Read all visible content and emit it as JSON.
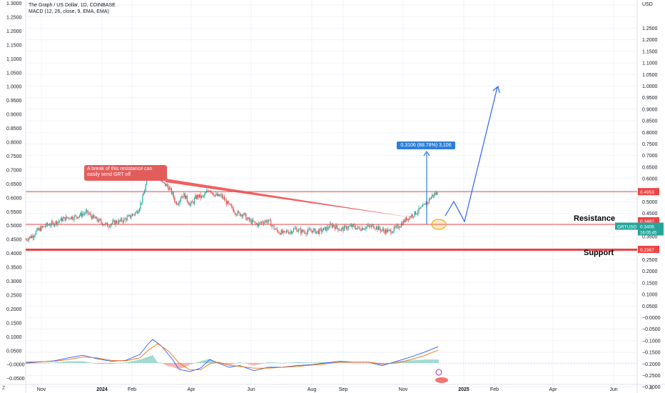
{
  "header": {
    "title": "The Graph / US Dollar, 1D, COINBASE",
    "indicator": "MACD (12, 26, close, 9, EMA, EMA)"
  },
  "colors": {
    "background": "#ffffff",
    "grid": "#f0f3fa",
    "up": "#26a69a",
    "down": "#ef5350",
    "resistance_line": "#ef4444",
    "support_line": "#ef4444",
    "measure": "#2d7fd8",
    "projection": "#2962ff",
    "macd_line": "#2962ff",
    "signal_line": "#ff6d00",
    "highlight_circle": "#f5a623",
    "tag_red": "#ef4444",
    "tag_teal": "#26a69a"
  },
  "chart_data": {
    "type": "candlestick",
    "symbol": "GRTUSD",
    "interval": "1D",
    "unit": "USD",
    "left_axis_ticks": [
      "1.3000",
      "1.2500",
      "1.2000",
      "1.1500",
      "1.1000",
      "1.0500",
      "1.0000",
      "0.9500",
      "0.9000",
      "0.8500",
      "0.8000",
      "0.7500",
      "0.7000",
      "0.6500",
      "0.6000",
      "0.5500",
      "0.5000",
      "0.4500",
      "0.4000",
      "0.3500",
      "0.3000",
      "0.2500",
      "0.2000",
      "0.1500",
      "0.1000",
      "0.0500",
      "−0.0000",
      "−0.0500"
    ],
    "right_axis_ticks": [
      "1.2500",
      "1.2000",
      "1.1500",
      "1.1000",
      "1.0500",
      "1.0000",
      "0.9500",
      "0.9000",
      "0.8500",
      "0.8000",
      "0.7500",
      "0.7000",
      "0.6500",
      "0.6000",
      "0.5500",
      "0.5000",
      "0.4500",
      "0.4000",
      "0.3500",
      "0.3000",
      "0.2500",
      "0.2000",
      "0.1500",
      "0.1000",
      "0.0500",
      "−0.0000",
      "−0.0500",
      "−0.1000",
      "−0.1500",
      "−0.2000",
      "−0.2500",
      "−0.3000"
    ],
    "x_axis_labels": [
      "Nov",
      "2024",
      "Feb",
      "Apr",
      "Jun",
      "Aug",
      "Sep",
      "Nov",
      "2025",
      "Feb",
      "Apr",
      "Jun"
    ],
    "price_path": [
      [
        0,
        0.282
      ],
      [
        5,
        0.29
      ],
      [
        10,
        0.298
      ],
      [
        15,
        0.318
      ],
      [
        22,
        0.332
      ],
      [
        30,
        0.346
      ],
      [
        38,
        0.352
      ],
      [
        45,
        0.362
      ],
      [
        52,
        0.372
      ],
      [
        60,
        0.38
      ],
      [
        68,
        0.382
      ],
      [
        75,
        0.388
      ],
      [
        80,
        0.396
      ],
      [
        86,
        0.402
      ],
      [
        92,
        0.385
      ],
      [
        98,
        0.372
      ],
      [
        104,
        0.362
      ],
      [
        110,
        0.35
      ],
      [
        115,
        0.345
      ],
      [
        120,
        0.352
      ],
      [
        126,
        0.36
      ],
      [
        132,
        0.362
      ],
      [
        138,
        0.37
      ],
      [
        144,
        0.38
      ],
      [
        150,
        0.392
      ],
      [
        156,
        0.405
      ],
      [
        160,
        0.432
      ],
      [
        164,
        0.468
      ],
      [
        168,
        0.52
      ],
      [
        170,
        0.555
      ],
      [
        172,
        0.59
      ],
      [
        175,
        0.61
      ],
      [
        178,
        0.598
      ],
      [
        181,
        0.575
      ],
      [
        184,
        0.582
      ],
      [
        187,
        0.568
      ],
      [
        190,
        0.54
      ],
      [
        194,
        0.528
      ],
      [
        198,
        0.522
      ],
      [
        202,
        0.506
      ],
      [
        206,
        0.482
      ],
      [
        210,
        0.445
      ],
      [
        214,
        0.448
      ],
      [
        218,
        0.476
      ],
      [
        222,
        0.48
      ],
      [
        226,
        0.46
      ],
      [
        230,
        0.438
      ],
      [
        234,
        0.445
      ],
      [
        238,
        0.468
      ],
      [
        242,
        0.476
      ],
      [
        246,
        0.47
      ],
      [
        250,
        0.475
      ],
      [
        254,
        0.495
      ],
      [
        258,
        0.505
      ],
      [
        262,
        0.49
      ],
      [
        266,
        0.478
      ],
      [
        270,
        0.475
      ],
      [
        274,
        0.476
      ],
      [
        278,
        0.462
      ],
      [
        282,
        0.445
      ],
      [
        286,
        0.43
      ],
      [
        290,
        0.418
      ],
      [
        294,
        0.402
      ],
      [
        298,
        0.398
      ],
      [
        302,
        0.395
      ],
      [
        306,
        0.392
      ],
      [
        310,
        0.372
      ],
      [
        314,
        0.365
      ],
      [
        318,
        0.358
      ],
      [
        322,
        0.352
      ],
      [
        326,
        0.348
      ],
      [
        330,
        0.358
      ],
      [
        334,
        0.362
      ],
      [
        338,
        0.365
      ],
      [
        342,
        0.358
      ],
      [
        346,
        0.34
      ],
      [
        350,
        0.325
      ],
      [
        354,
        0.316
      ],
      [
        358,
        0.312
      ],
      [
        362,
        0.308
      ],
      [
        366,
        0.318
      ],
      [
        370,
        0.315
      ],
      [
        374,
        0.322
      ],
      [
        378,
        0.33
      ],
      [
        382,
        0.322
      ],
      [
        386,
        0.318
      ],
      [
        390,
        0.316
      ],
      [
        394,
        0.315
      ],
      [
        398,
        0.32
      ],
      [
        402,
        0.322
      ],
      [
        406,
        0.318
      ],
      [
        410,
        0.316
      ],
      [
        414,
        0.32
      ],
      [
        418,
        0.326
      ],
      [
        422,
        0.33
      ],
      [
        426,
        0.34
      ],
      [
        430,
        0.345
      ],
      [
        434,
        0.338
      ],
      [
        438,
        0.33
      ],
      [
        442,
        0.326
      ],
      [
        446,
        0.33
      ],
      [
        450,
        0.336
      ],
      [
        454,
        0.338
      ],
      [
        458,
        0.34
      ],
      [
        462,
        0.335
      ],
      [
        466,
        0.33
      ],
      [
        470,
        0.332
      ],
      [
        474,
        0.334
      ],
      [
        478,
        0.338
      ],
      [
        482,
        0.336
      ],
      [
        486,
        0.342
      ],
      [
        490,
        0.338
      ],
      [
        494,
        0.33
      ],
      [
        498,
        0.325
      ],
      [
        502,
        0.32
      ],
      [
        506,
        0.318
      ],
      [
        510,
        0.318
      ],
      [
        514,
        0.322
      ],
      [
        518,
        0.33
      ],
      [
        522,
        0.338
      ],
      [
        526,
        0.35
      ],
      [
        530,
        0.362
      ],
      [
        534,
        0.375
      ],
      [
        538,
        0.382
      ],
      [
        542,
        0.392
      ],
      [
        546,
        0.398
      ],
      [
        550,
        0.41
      ],
      [
        554,
        0.42
      ],
      [
        558,
        0.43
      ],
      [
        562,
        0.444
      ],
      [
        566,
        0.462
      ],
      [
        570,
        0.478
      ],
      [
        574,
        0.486
      ],
      [
        578,
        0.49
      ]
    ],
    "resistance_upper": 0.4953,
    "resistance_level": 0.3487,
    "support_level": 0.2367,
    "last_price": 0.3406,
    "last_price_tag": "0.3406",
    "countdown": "16:05:45",
    "tags": {
      "upper": "0.4953",
      "resistance": "0.3487",
      "support": "0.2367",
      "symbol": "GRTUSD"
    },
    "zone_labels": {
      "resistance": "Resistance",
      "support": "Support"
    },
    "annotations": {
      "callout": "A break of this resistance can easily send GRT off",
      "measure": "0.3106 (88.78%) 3,106"
    },
    "macd": {
      "macd_path": [
        [
          0,
          0.0
        ],
        [
          40,
          0.005
        ],
        [
          60,
          0.012
        ],
        [
          80,
          0.018
        ],
        [
          100,
          0.01
        ],
        [
          120,
          0.004
        ],
        [
          140,
          0.006
        ],
        [
          160,
          0.02
        ],
        [
          172,
          0.045
        ],
        [
          178,
          0.055
        ],
        [
          190,
          0.04
        ],
        [
          205,
          0.01
        ],
        [
          215,
          -0.015
        ],
        [
          230,
          -0.02
        ],
        [
          245,
          -0.012
        ],
        [
          258,
          0.008
        ],
        [
          270,
          0.0
        ],
        [
          285,
          -0.01
        ],
        [
          300,
          -0.006
        ],
        [
          320,
          -0.018
        ],
        [
          340,
          -0.01
        ],
        [
          360,
          -0.01
        ],
        [
          380,
          -0.006
        ],
        [
          400,
          -0.004
        ],
        [
          420,
          0.0
        ],
        [
          440,
          0.004
        ],
        [
          460,
          0.002
        ],
        [
          480,
          0.002
        ],
        [
          500,
          -0.006
        ],
        [
          520,
          0.004
        ],
        [
          540,
          0.014
        ],
        [
          560,
          0.026
        ],
        [
          578,
          0.038
        ]
      ],
      "signal_path": [
        [
          0,
          0.002
        ],
        [
          40,
          0.004
        ],
        [
          60,
          0.008
        ],
        [
          80,
          0.014
        ],
        [
          100,
          0.012
        ],
        [
          120,
          0.006
        ],
        [
          140,
          0.005
        ],
        [
          160,
          0.012
        ],
        [
          172,
          0.03
        ],
        [
          185,
          0.045
        ],
        [
          200,
          0.028
        ],
        [
          215,
          0.0
        ],
        [
          230,
          -0.016
        ],
        [
          245,
          -0.016
        ],
        [
          258,
          -0.002
        ],
        [
          270,
          0.002
        ],
        [
          285,
          -0.005
        ],
        [
          300,
          -0.008
        ],
        [
          320,
          -0.012
        ],
        [
          340,
          -0.012
        ],
        [
          360,
          -0.01
        ],
        [
          380,
          -0.008
        ],
        [
          400,
          -0.005
        ],
        [
          420,
          -0.002
        ],
        [
          440,
          0.002
        ],
        [
          460,
          0.002
        ],
        [
          480,
          0.002
        ],
        [
          500,
          -0.002
        ],
        [
          520,
          0.0
        ],
        [
          540,
          0.008
        ],
        [
          560,
          0.018
        ],
        [
          578,
          0.03
        ]
      ]
    }
  },
  "corners": {
    "left": "Z",
    "right": "A"
  }
}
